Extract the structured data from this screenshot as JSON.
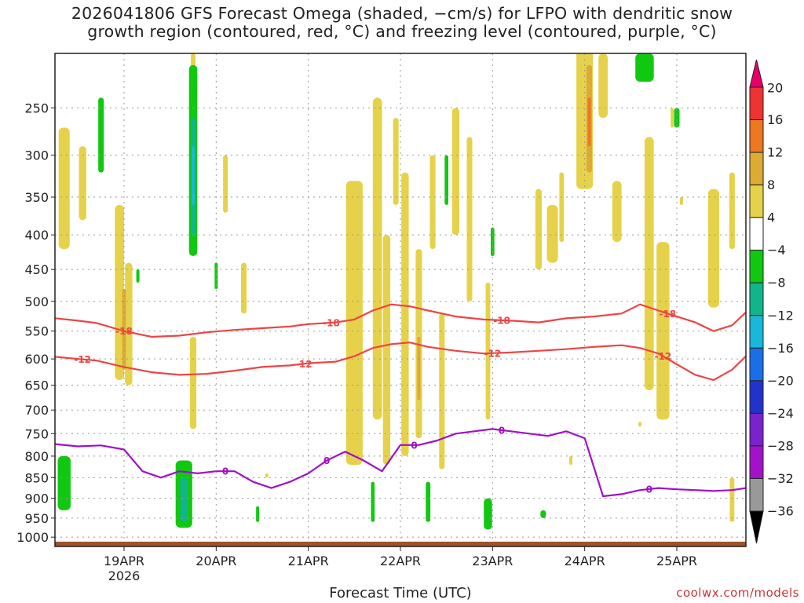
{
  "chart_data": {
    "type": "heatmap",
    "title_lines": [
      "2026041806 GFS Forecast Omega (shaded, −cm/s) for LFPO with dendritic snow",
      "growth region (contoured, red, °C) and freezing level (contoured, purple, °C)"
    ],
    "xlabel": "Forecast Time (UTC)",
    "ylabel": "",
    "x_ticks": [
      "19APR",
      "20APR",
      "21APR",
      "22APR",
      "23APR",
      "24APR",
      "25APR"
    ],
    "x_year_label": "2026",
    "y_ticks": [
      250,
      300,
      350,
      400,
      450,
      500,
      550,
      600,
      650,
      700,
      750,
      800,
      850,
      900,
      950,
      1000
    ],
    "y_range_hPa": [
      1025,
      200
    ],
    "x_range_days": [
      18.25,
      25.75
    ],
    "colorbar": {
      "labels": [
        "20",
        "16",
        "12",
        "8",
        "4",
        "−4",
        "−8",
        "−12",
        "−16",
        "−20",
        "−24",
        "−28",
        "−32",
        "−36"
      ],
      "colors": [
        "#e8006a",
        "#ee3333",
        "#ee7722",
        "#ddaa33",
        "#e6d24a",
        "#ffffff",
        "#11c811",
        "#10b58c",
        "#17b8d8",
        "#1a6fe8",
        "#2233cc",
        "#7a22cc",
        "#a312c8",
        "#999999",
        "#000000"
      ]
    },
    "contours": {
      "red_levels": [
        "-18",
        "-12"
      ],
      "purple_level": "0",
      "red_color": "#ee4444",
      "purple_color": "#a010c8"
    },
    "series": [
      {
        "name": "-18 isotherm",
        "days": [
          18.25,
          18.5,
          18.7,
          19.0,
          19.3,
          19.6,
          19.9,
          20.2,
          20.5,
          20.8,
          21.0,
          21.3,
          21.5,
          21.7,
          21.9,
          22.1,
          22.3,
          22.6,
          22.9,
          23.2,
          23.5,
          23.8,
          24.1,
          24.4,
          24.6,
          24.8,
          25.0,
          25.2,
          25.4,
          25.6,
          25.75
        ],
        "pressure": [
          528,
          532,
          536,
          550,
          560,
          558,
          552,
          548,
          545,
          542,
          538,
          535,
          530,
          515,
          505,
          508,
          515,
          525,
          530,
          532,
          535,
          528,
          525,
          520,
          505,
          515,
          525,
          535,
          550,
          540,
          518
        ]
      },
      {
        "name": "-12 isotherm",
        "days": [
          18.25,
          18.5,
          18.7,
          19.0,
          19.3,
          19.6,
          19.9,
          20.2,
          20.5,
          20.8,
          21.0,
          21.3,
          21.5,
          21.7,
          21.9,
          22.1,
          22.3,
          22.6,
          22.9,
          23.2,
          23.5,
          23.8,
          24.1,
          24.4,
          24.6,
          24.8,
          25.0,
          25.2,
          25.4,
          25.6,
          25.75
        ],
        "pressure": [
          596,
          600,
          603,
          615,
          625,
          630,
          628,
          622,
          615,
          612,
          608,
          605,
          595,
          580,
          573,
          570,
          578,
          585,
          590,
          588,
          585,
          582,
          578,
          575,
          580,
          590,
          610,
          630,
          640,
          620,
          595
        ]
      },
      {
        "name": "0 isotherm (freezing level)",
        "days": [
          18.25,
          18.5,
          18.75,
          19.0,
          19.2,
          19.4,
          19.6,
          19.8,
          20.0,
          20.2,
          20.4,
          20.6,
          20.8,
          21.0,
          21.2,
          21.4,
          21.6,
          21.8,
          22.0,
          22.2,
          22.4,
          22.6,
          22.8,
          23.0,
          23.2,
          23.4,
          23.6,
          23.8,
          24.0,
          24.2,
          24.4,
          24.6,
          24.8,
          25.0,
          25.2,
          25.4,
          25.6,
          25.75
        ],
        "pressure": [
          773,
          778,
          776,
          785,
          835,
          850,
          835,
          840,
          835,
          835,
          860,
          875,
          860,
          840,
          810,
          790,
          810,
          835,
          775,
          775,
          765,
          750,
          745,
          740,
          745,
          750,
          755,
          745,
          760,
          895,
          890,
          880,
          875,
          878,
          880,
          882,
          880,
          875
        ]
      }
    ]
  },
  "credit": "coolwx.com/models"
}
